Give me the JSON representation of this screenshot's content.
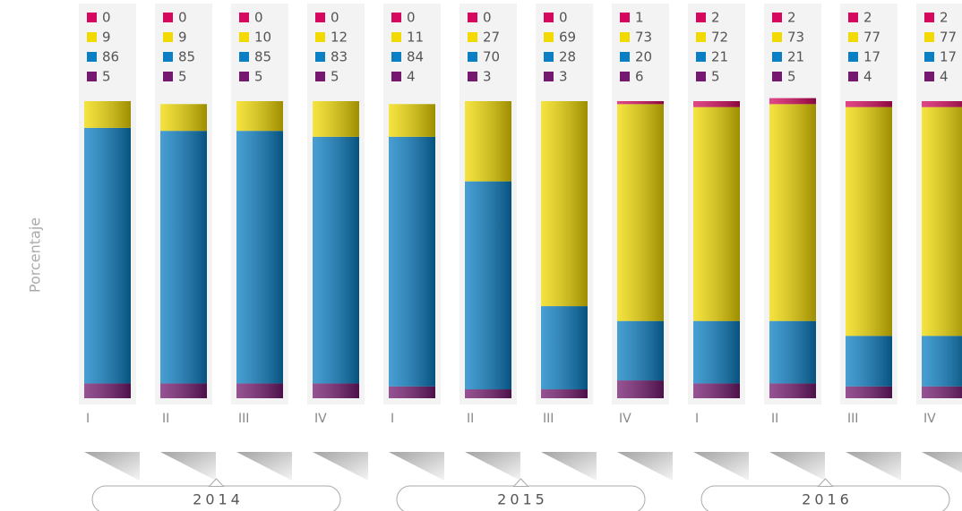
{
  "chart_data": {
    "type": "stacked_bar",
    "y_label": "Porcentaje",
    "categories": [
      "I",
      "II",
      "III",
      "IV",
      "I",
      "II",
      "III",
      "IV",
      "I",
      "II",
      "III",
      "IV"
    ],
    "groups": [
      "2014",
      "2015",
      "2016"
    ],
    "ylim": [
      0,
      100
    ],
    "series": [
      {
        "color": "#d6085e",
        "values": [
          0,
          0,
          0,
          0,
          0,
          0,
          0,
          1,
          2,
          2,
          2,
          2
        ]
      },
      {
        "color": "#f2da00",
        "values": [
          9,
          9,
          10,
          12,
          11,
          27,
          69,
          73,
          72,
          73,
          77,
          77
        ]
      },
      {
        "color": "#0a7fc4",
        "values": [
          86,
          85,
          85,
          83,
          84,
          70,
          28,
          20,
          21,
          21,
          17,
          17
        ]
      },
      {
        "color": "#74196f",
        "values": [
          5,
          5,
          5,
          5,
          4,
          3,
          3,
          6,
          5,
          5,
          4,
          4
        ]
      }
    ]
  }
}
